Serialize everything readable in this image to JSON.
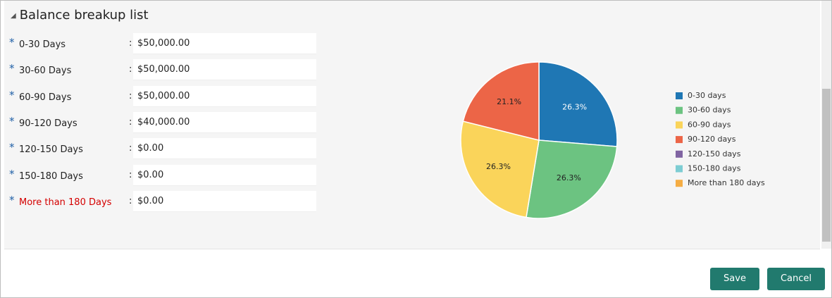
{
  "form": {
    "title": "Balance breakup list",
    "required_marker": "*",
    "separator": ":",
    "fields": [
      {
        "label": "0-30 Days",
        "value": "$50,000.00"
      },
      {
        "label": "30-60 Days",
        "value": "$50,000.00"
      },
      {
        "label": "60-90 Days",
        "value": "$50,000.00"
      },
      {
        "label": "90-120 Days",
        "value": "$40,000.00"
      },
      {
        "label": "120-150 Days",
        "value": "$0.00"
      },
      {
        "label": "150-180 Days",
        "value": "$0.00"
      },
      {
        "label": "More than 180 Days",
        "value": "$0.00"
      }
    ],
    "buttons": [
      "Save",
      "Cancel"
    ]
  },
  "chart_data": {
    "type": "pie",
    "categories": [
      "0-30 days",
      "30-60 days",
      "60-90 days",
      "90-120 days",
      "120-150 days",
      "150-180 days",
      "More than 180 days"
    ],
    "values": [
      26.3,
      26.3,
      26.3,
      21.1,
      0,
      0,
      0
    ],
    "value_labels": [
      "26.3%",
      "26.3%",
      "26.3%",
      "21.1%",
      null,
      null,
      null
    ],
    "colors": [
      "#1f77b4",
      "#6cc381",
      "#fad45a",
      "#ec6547",
      "#8064a2",
      "#7dcdd3",
      "#f5ad44"
    ],
    "legend": "right"
  }
}
